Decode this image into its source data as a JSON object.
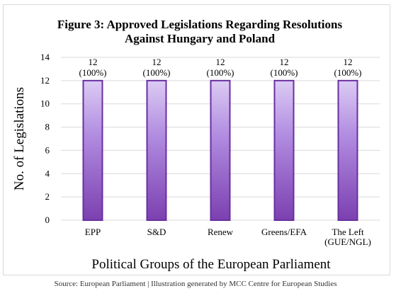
{
  "chart_data": {
    "type": "bar",
    "title": "Figure 3: Approved Legislations Regarding Resolutions Against Hungary and Poland",
    "title_lines": [
      "Figure 3: Approved Legislations Regarding Resolutions",
      "Against Hungary and Poland"
    ],
    "xlabel": "Political Groups of the European Parliament",
    "ylabel": "No. of Legislations",
    "categories": [
      "EPP",
      "S&D",
      "Renew",
      "Greens/EFA",
      "The Left (GUE/NGL)"
    ],
    "category_lines": [
      [
        "EPP"
      ],
      [
        "S&D"
      ],
      [
        "Renew"
      ],
      [
        "Greens/EFA"
      ],
      [
        "The Left",
        "(GUE/NGL)"
      ]
    ],
    "values": [
      12,
      12,
      12,
      12,
      12
    ],
    "data_labels": [
      [
        "12",
        "(100%)"
      ],
      [
        "12",
        "(100%)"
      ],
      [
        "12",
        "(100%)"
      ],
      [
        "12",
        "(100%)"
      ],
      [
        "12",
        "(100%)"
      ]
    ],
    "yticks": [
      0,
      2,
      4,
      6,
      8,
      10,
      12,
      14
    ],
    "ylim": [
      0,
      14
    ],
    "grid": true,
    "legend": "none",
    "colors": {
      "bar_top": "#dccbf4",
      "bar_bottom": "#7b40b0",
      "bar_border": "#6a2fa0",
      "grid": "#d9d9d9"
    }
  },
  "source": "Source: European Parliament | Illustration generated by MCC Centre for European Studies"
}
